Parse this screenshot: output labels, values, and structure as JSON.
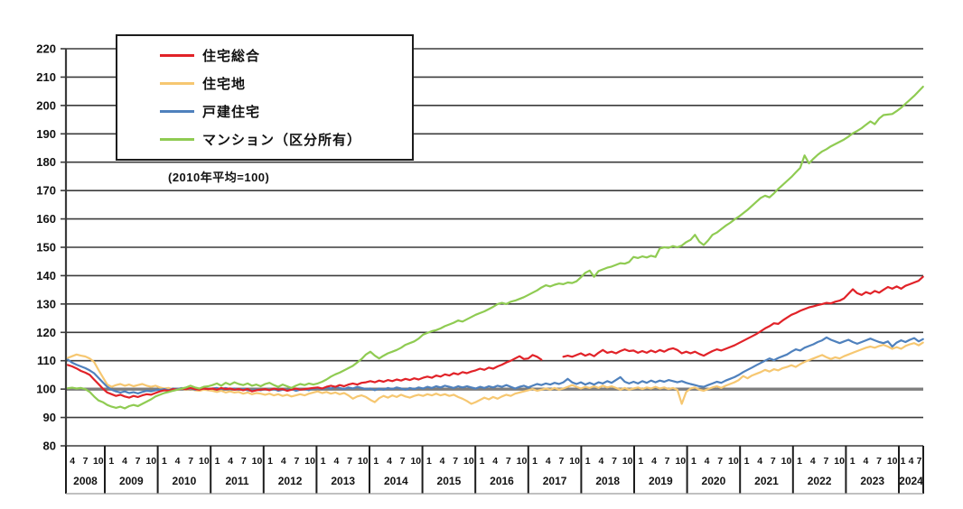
{
  "chart_data": {
    "type": "line",
    "note": "(2010年平均=100)",
    "baseline_value": 100,
    "frequency": "monthly",
    "start": "2008-04",
    "end": "2024-07",
    "y_axis": {
      "min": 80,
      "max": 220,
      "step": 10,
      "ticks": [
        80,
        90,
        100,
        110,
        120,
        130,
        140,
        150,
        160,
        170,
        180,
        190,
        200,
        210,
        220
      ]
    },
    "x_axis": {
      "years": [
        {
          "label": "2008",
          "months": [
            "4",
            "7",
            "10"
          ]
        },
        {
          "label": "2009",
          "months": [
            "1",
            "4",
            "7",
            "10"
          ]
        },
        {
          "label": "2010",
          "months": [
            "1",
            "4",
            "7",
            "10"
          ]
        },
        {
          "label": "2011",
          "months": [
            "1",
            "4",
            "7",
            "10"
          ]
        },
        {
          "label": "2012",
          "months": [
            "1",
            "4",
            "7",
            "10"
          ]
        },
        {
          "label": "2013",
          "months": [
            "1",
            "4",
            "7",
            "10"
          ]
        },
        {
          "label": "2014",
          "months": [
            "1",
            "4",
            "7",
            "10"
          ]
        },
        {
          "label": "2015",
          "months": [
            "1",
            "4",
            "7",
            "10"
          ]
        },
        {
          "label": "2016",
          "months": [
            "1",
            "4",
            "7",
            "10"
          ]
        },
        {
          "label": "2017",
          "months": [
            "1",
            "4",
            "7",
            "10"
          ]
        },
        {
          "label": "2018",
          "months": [
            "1",
            "4",
            "7",
            "10"
          ]
        },
        {
          "label": "2019",
          "months": [
            "1",
            "4",
            "7",
            "10"
          ]
        },
        {
          "label": "2020",
          "months": [
            "1",
            "4",
            "7",
            "10"
          ]
        },
        {
          "label": "2021",
          "months": [
            "1",
            "4",
            "7",
            "10"
          ]
        },
        {
          "label": "2022",
          "months": [
            "1",
            "4",
            "7",
            "10"
          ]
        },
        {
          "label": "2023",
          "months": [
            "1",
            "4",
            "7",
            "10"
          ]
        },
        {
          "label": "2024",
          "months": [
            "1",
            "4",
            "7"
          ]
        }
      ]
    },
    "series": [
      {
        "key": "housing-total",
        "name": "住宅総合",
        "color": "#e12228",
        "values": [
          108.5,
          108.0,
          107.3,
          106.4,
          105.8,
          105.0,
          103.4,
          101.8,
          100.2,
          98.8,
          98.2,
          97.6,
          98.0,
          97.4,
          97.0,
          97.6,
          97.2,
          97.8,
          98.2,
          98.0,
          98.6,
          99.2,
          99.6,
          99.4,
          100.0,
          99.8,
          100.2,
          100.0,
          100.4,
          100.0,
          99.8,
          100.2,
          100.0,
          100.2,
          99.8,
          100.4,
          100.0,
          100.2,
          99.8,
          100.0,
          99.6,
          100.0,
          99.2,
          99.6,
          99.8,
          100.0,
          99.6,
          100.2,
          99.8,
          100.0,
          99.4,
          99.8,
          100.2,
          99.8,
          100.0,
          100.2,
          100.4,
          100.6,
          100.2,
          100.8,
          101.2,
          100.8,
          101.4,
          101.0,
          101.6,
          102.0,
          101.6,
          102.2,
          102.4,
          102.8,
          102.4,
          103.0,
          102.6,
          103.2,
          102.8,
          103.4,
          103.0,
          103.6,
          103.2,
          103.8,
          103.4,
          104.0,
          104.4,
          104.0,
          104.8,
          104.4,
          105.2,
          104.8,
          105.6,
          105.2,
          106.0,
          105.6,
          106.2,
          106.6,
          107.2,
          106.8,
          107.6,
          107.2,
          108.0,
          108.6,
          109.4,
          110.0,
          110.8,
          111.6,
          110.6,
          110.8,
          112.0,
          111.4,
          110.4,
          null,
          null,
          null,
          null,
          111.4,
          111.8,
          111.4,
          112.0,
          112.6,
          111.8,
          112.4,
          111.6,
          112.8,
          113.8,
          112.8,
          113.2,
          112.6,
          113.4,
          114.0,
          113.4,
          113.6,
          112.8,
          113.4,
          112.8,
          113.6,
          113.0,
          113.8,
          113.2,
          114.0,
          114.4,
          113.8,
          112.6,
          113.2,
          112.6,
          113.2,
          112.4,
          111.8,
          112.6,
          113.4,
          114.0,
          113.6,
          114.2,
          114.8,
          115.4,
          116.2,
          117.0,
          117.8,
          118.6,
          119.4,
          120.4,
          121.4,
          122.2,
          123.2,
          123.0,
          124.2,
          125.2,
          126.2,
          126.8,
          127.6,
          128.2,
          128.8,
          129.2,
          129.6,
          130.0,
          130.4,
          130.2,
          130.8,
          131.2,
          132.0,
          133.6,
          135.2,
          133.8,
          133.2,
          134.2,
          133.6,
          134.6,
          134.0,
          135.0,
          136.0,
          135.4,
          136.2,
          135.4,
          136.4,
          137.0,
          137.6,
          138.2,
          139.6
        ]
      },
      {
        "key": "residential-land",
        "name": "住宅地",
        "color": "#f6c771",
        "values": [
          111.0,
          111.6,
          112.2,
          111.8,
          111.5,
          110.8,
          109.6,
          106.8,
          104.2,
          101.6,
          100.8,
          101.4,
          101.8,
          101.2,
          101.6,
          101.0,
          101.4,
          101.8,
          101.2,
          100.8,
          101.2,
          100.6,
          100.2,
          100.4,
          100.0,
          99.8,
          100.2,
          99.8,
          100.0,
          99.6,
          99.4,
          99.8,
          99.6,
          99.4,
          99.0,
          99.4,
          98.8,
          99.2,
          98.8,
          99.0,
          98.4,
          98.8,
          98.2,
          98.6,
          98.4,
          98.0,
          98.4,
          97.8,
          98.2,
          97.6,
          98.0,
          97.4,
          97.8,
          98.2,
          97.8,
          98.4,
          98.8,
          99.2,
          98.6,
          99.0,
          98.4,
          98.8,
          98.2,
          98.6,
          97.8,
          96.6,
          97.4,
          97.8,
          97.2,
          96.2,
          95.4,
          96.8,
          97.6,
          97.0,
          97.8,
          97.2,
          98.0,
          97.4,
          97.0,
          97.6,
          98.0,
          97.6,
          98.2,
          97.8,
          98.4,
          97.8,
          98.2,
          97.6,
          98.0,
          97.2,
          96.6,
          95.8,
          94.8,
          95.4,
          96.2,
          97.0,
          96.4,
          97.2,
          96.6,
          97.4,
          98.0,
          97.6,
          98.4,
          98.8,
          99.2,
          99.6,
          100.0,
          99.4,
          99.8,
          100.2,
          99.8,
          100.4,
          99.8,
          100.2,
          100.8,
          101.4,
          100.8,
          100.2,
          100.8,
          100.4,
          101.0,
          100.4,
          101.2,
          100.6,
          101.0,
          100.4,
          99.8,
          100.4,
          99.8,
          100.2,
          100.6,
          100.0,
          100.6,
          100.2,
          100.8,
          100.2,
          100.6,
          100.0,
          100.4,
          99.8,
          94.8,
          99.0,
          100.2,
          100.6,
          99.8,
          99.4,
          100.0,
          100.6,
          101.0,
          100.4,
          101.2,
          101.8,
          102.4,
          103.2,
          104.6,
          103.8,
          104.8,
          105.4,
          106.0,
          106.8,
          106.2,
          107.0,
          106.6,
          107.4,
          107.8,
          108.4,
          107.8,
          108.8,
          109.6,
          110.2,
          110.8,
          111.4,
          112.0,
          111.2,
          110.6,
          111.2,
          110.8,
          111.6,
          112.2,
          112.8,
          113.4,
          114.0,
          114.6,
          115.0,
          114.6,
          115.2,
          115.6,
          115.0,
          114.2,
          114.8,
          114.2,
          115.2,
          115.8,
          116.2,
          115.4,
          116.4
        ]
      },
      {
        "key": "detached-house",
        "name": "戸建住宅",
        "color": "#4f81bd",
        "values": [
          110.4,
          109.3,
          108.6,
          108.0,
          107.4,
          106.6,
          105.6,
          104.0,
          102.4,
          100.8,
          99.8,
          99.2,
          98.8,
          99.2,
          98.6,
          98.9,
          98.5,
          99.0,
          99.4,
          99.2,
          99.6,
          99.8,
          100.0,
          99.6,
          100.2,
          100.0,
          100.4,
          100.0,
          100.2,
          99.8,
          100.0,
          100.2,
          100.0,
          100.2,
          100.4,
          100.0,
          100.4,
          100.0,
          100.2,
          99.8,
          100.0,
          99.6,
          99.4,
          99.8,
          99.6,
          100.0,
          99.6,
          100.0,
          99.4,
          99.8,
          99.6,
          100.0,
          99.4,
          99.8,
          100.0,
          99.6,
          100.2,
          100.4,
          100.0,
          100.6,
          100.2,
          100.8,
          100.4,
          100.0,
          100.6,
          100.2,
          100.8,
          100.4,
          100.0,
          100.2,
          99.6,
          100.2,
          99.8,
          100.4,
          100.0,
          100.6,
          100.2,
          99.8,
          100.4,
          100.0,
          100.6,
          100.2,
          100.8,
          100.4,
          101.0,
          100.6,
          101.2,
          100.8,
          100.4,
          101.0,
          100.6,
          101.0,
          100.6,
          100.2,
          100.8,
          100.4,
          101.0,
          100.6,
          101.2,
          100.8,
          101.4,
          100.8,
          100.2,
          100.8,
          101.2,
          100.6,
          101.2,
          101.8,
          101.4,
          102.0,
          101.6,
          102.2,
          101.8,
          102.4,
          103.6,
          102.4,
          101.8,
          102.4,
          101.6,
          102.2,
          101.6,
          102.4,
          102.0,
          102.8,
          102.2,
          103.2,
          104.2,
          102.6,
          102.0,
          102.6,
          102.0,
          102.8,
          102.2,
          103.0,
          102.4,
          103.0,
          102.6,
          103.2,
          102.8,
          102.4,
          102.8,
          102.2,
          101.8,
          101.4,
          101.0,
          100.8,
          101.4,
          102.0,
          102.6,
          102.2,
          103.0,
          103.6,
          104.2,
          105.0,
          106.0,
          106.8,
          107.6,
          108.4,
          109.2,
          110.0,
          110.8,
          110.2,
          111.0,
          111.6,
          112.2,
          113.2,
          114.0,
          113.6,
          114.6,
          115.2,
          115.8,
          116.6,
          117.2,
          118.2,
          117.4,
          116.8,
          116.2,
          116.8,
          117.4,
          116.6,
          116.0,
          116.6,
          117.2,
          117.8,
          117.2,
          116.6,
          116.2,
          116.8,
          115.0,
          116.4,
          117.2,
          116.6,
          117.4,
          118.0,
          116.8,
          117.6
        ]
      },
      {
        "key": "condominium",
        "name": "マンション（区分所有）",
        "color": "#8fcb52",
        "values": [
          100.3,
          100.5,
          100.2,
          100.4,
          100.0,
          99.0,
          97.4,
          96.0,
          95.4,
          94.4,
          93.8,
          93.4,
          93.8,
          93.2,
          94.0,
          94.4,
          94.0,
          94.8,
          95.6,
          96.4,
          97.4,
          98.0,
          98.6,
          99.0,
          99.4,
          99.8,
          100.2,
          100.6,
          101.2,
          100.6,
          100.2,
          100.8,
          101.0,
          101.4,
          102.0,
          101.2,
          102.2,
          101.6,
          102.4,
          101.8,
          101.4,
          102.0,
          101.2,
          101.6,
          101.0,
          101.8,
          102.2,
          101.4,
          100.8,
          101.6,
          101.0,
          100.4,
          101.2,
          101.8,
          101.4,
          102.0,
          101.6,
          102.0,
          102.6,
          103.4,
          104.4,
          105.2,
          105.8,
          106.6,
          107.4,
          108.2,
          109.4,
          110.6,
          112.2,
          113.2,
          111.8,
          110.8,
          111.8,
          112.6,
          113.2,
          113.8,
          114.6,
          115.6,
          116.2,
          116.8,
          117.8,
          119.2,
          119.8,
          120.4,
          120.8,
          121.4,
          122.2,
          122.8,
          123.4,
          124.2,
          123.8,
          124.6,
          125.4,
          126.2,
          126.8,
          127.4,
          128.2,
          129.0,
          130.0,
          130.4,
          130.0,
          130.8,
          131.2,
          131.8,
          132.4,
          133.2,
          134.0,
          134.8,
          135.8,
          136.6,
          136.2,
          136.8,
          137.2,
          137.0,
          137.6,
          137.4,
          138.0,
          139.4,
          141.0,
          141.8,
          139.6,
          141.6,
          142.2,
          142.8,
          143.2,
          143.8,
          144.4,
          144.2,
          144.8,
          146.6,
          146.2,
          146.8,
          146.4,
          147.0,
          146.6,
          149.6,
          150.0,
          149.8,
          150.4,
          150.0,
          150.6,
          151.8,
          152.6,
          154.4,
          152.0,
          150.8,
          152.4,
          154.4,
          155.2,
          156.4,
          157.6,
          158.6,
          159.8,
          160.8,
          162.0,
          163.2,
          164.6,
          166.0,
          167.4,
          168.2,
          167.6,
          169.0,
          170.6,
          172.0,
          173.4,
          174.8,
          176.4,
          178.0,
          182.4,
          179.6,
          181.2,
          182.6,
          183.8,
          184.6,
          185.6,
          186.4,
          187.2,
          188.0,
          189.0,
          190.2,
          191.0,
          192.0,
          193.2,
          194.4,
          193.4,
          195.4,
          196.6,
          196.8,
          197.0,
          198.0,
          199.2,
          200.6,
          202.0,
          203.4,
          205.0,
          206.6
        ]
      }
    ]
  },
  "legend": {
    "title": ""
  }
}
